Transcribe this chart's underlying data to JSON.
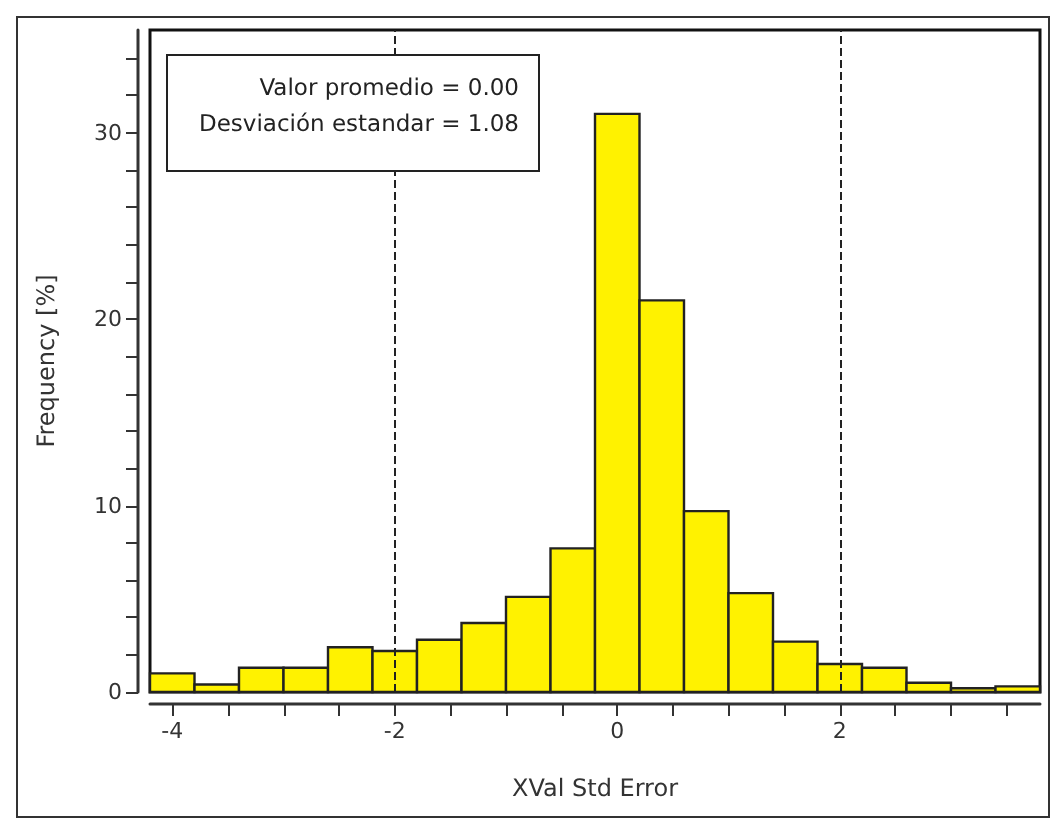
{
  "chart_data": {
    "type": "histogram",
    "xlabel": "XVal Std Error",
    "ylabel": "Frequency [%]",
    "bins": [
      -4.2,
      -3.8,
      -3.4,
      -3.0,
      -2.6,
      -2.2,
      -1.8,
      -1.4,
      -1.0,
      -0.6,
      -0.2,
      0.2,
      0.6,
      1.0,
      1.4,
      1.8,
      2.2,
      2.6,
      3.0,
      3.4,
      3.8
    ],
    "values": [
      1.0,
      0.4,
      1.3,
      1.3,
      2.4,
      2.2,
      2.8,
      3.7,
      5.1,
      7.7,
      31.0,
      21.0,
      9.7,
      5.3,
      2.7,
      1.5,
      1.3,
      0.5,
      0.2,
      0.3
    ],
    "color": "#fff200",
    "xlim": [
      -4.2,
      3.8
    ],
    "xticks": [
      -4,
      {
        "value": -3.5,
        "label": null
      },
      {
        "value": -3,
        "label": null
      },
      {
        "value": -2.5,
        "label": null
      },
      -2,
      {
        "value": -1.5,
        "label": null
      },
      {
        "value": -1,
        "label": null
      },
      {
        "value": -0.5,
        "label": null
      },
      0,
      {
        "value": 0.5,
        "label": null
      },
      {
        "value": 1,
        "label": null
      },
      {
        "value": 1.5,
        "label": null
      },
      2,
      {
        "value": 2.5,
        "label": null
      },
      {
        "value": 3,
        "label": null
      },
      {
        "value": 3.5,
        "label": null
      }
    ],
    "ylim": [
      0,
      35.5
    ],
    "yticks": [
      0,
      {
        "value": 2,
        "label": null
      },
      {
        "value": 4,
        "label": null
      },
      {
        "value": 6,
        "label": null
      },
      {
        "value": 8,
        "label": null
      },
      10,
      {
        "value": 12,
        "label": null
      },
      {
        "value": 14,
        "label": null
      },
      {
        "value": 16,
        "label": null
      },
      {
        "value": 18,
        "label": null
      },
      20,
      {
        "value": 22,
        "label": null
      },
      {
        "value": 24,
        "label": null
      },
      {
        "value": 26,
        "label": null
      },
      {
        "value": 28,
        "label": null
      },
      30,
      {
        "value": 32,
        "label": null
      },
      {
        "value": 34,
        "label": null
      }
    ],
    "ref_lines": [
      {
        "axis": "x",
        "value": -2,
        "line_style": "dashed"
      },
      {
        "axis": "x",
        "value": 2,
        "line_style": "dashed"
      }
    ],
    "annotations": [
      "Valor promedio = 0.00",
      "Desviación estandar = 1.08"
    ],
    "grid": false
  }
}
